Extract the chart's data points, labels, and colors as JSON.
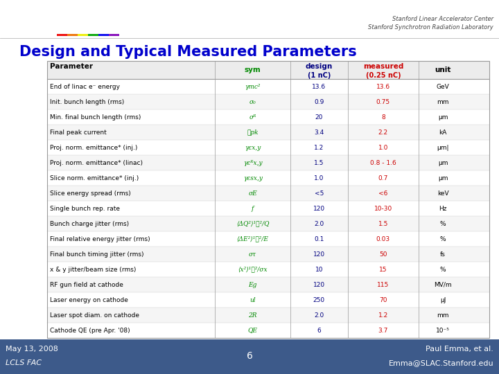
{
  "title": "Design and Typical Measured Parameters",
  "title_color": "#0000CC",
  "bg_color": "#3D5A8A",
  "slide_bg": "#FFFFFF",
  "footer_left1": "May 13, 2008",
  "footer_left2": "LCLS FAC",
  "footer_center": "6",
  "footer_right1": "Paul Emma, et al.",
  "footer_right2": "Emma@SLAC.Stanford.edu",
  "footer_color": "#FFFFFF",
  "stanford_line1": "Stanford Linear Accelerator Center",
  "stanford_line2": "Stanford Synchrotron Radiation Laboratory",
  "header_param": "Parameter",
  "header_sym": "sym",
  "header_design1": "design",
  "header_design2": "(1 nC)",
  "header_measured1": "measured",
  "header_measured2": "(0.25 nC)",
  "header_unit": "unit",
  "rows": [
    [
      "End of linac e⁻ energy",
      "γmc²",
      "13.6",
      "13.6",
      "GeV"
    ],
    [
      "Init. bunch length (rms)",
      "σ₀",
      "0.9",
      "0.75",
      "mm"
    ],
    [
      "Min. final bunch length (rms)",
      "σᴿ",
      "20",
      "8",
      "μm"
    ],
    [
      "Final peak current",
      "ℓpk",
      "3.4",
      "2.2",
      "kA"
    ],
    [
      "Proj. norm. emittance* (inj.)",
      "γεx,y",
      "1.2",
      "1.0",
      "μm|"
    ],
    [
      "Proj. norm. emittance* (linac)",
      "γεᴿx,y",
      "1.5",
      "0.8 - 1.6",
      "μm"
    ],
    [
      "Slice norm. emittance* (inj.)",
      "γεsx,y",
      "1.0",
      "0.7",
      "μm"
    ],
    [
      "Slice energy spread (rms)",
      "σE",
      "<5",
      "<6",
      "keV"
    ],
    [
      "Single bunch rep. rate",
      "f",
      "120",
      "10-30",
      "Hz"
    ],
    [
      "Bunch charge jitter (rms)",
      "⟨ΔQ²⟩¹ᐟ²/Q",
      "2.0",
      "1.5",
      "%"
    ],
    [
      "Final relative energy jitter (rms)",
      "⟨ΔE²⟩¹ᐟ²/E",
      "0.1",
      "0.03",
      "%"
    ],
    [
      "Final bunch timing jitter (rms)",
      "στ",
      "120",
      "50",
      "fs"
    ],
    [
      "x & y jitter/beam size (rms)",
      "⟨x²⟩¹ᐟ²/σx",
      "10",
      "15",
      "%"
    ],
    [
      "RF gun field at cathode",
      "Eg",
      "120",
      "115",
      "MV/m"
    ],
    [
      "Laser energy on cathode",
      "ul",
      "250",
      "70",
      "μJ"
    ],
    [
      "Laser spot diam. on cathode",
      "2R",
      "2.0",
      "1.2",
      "mm"
    ],
    [
      "Cathode QE (pre Apr. '08)",
      "QE",
      "6",
      "3.7",
      "10⁻⁵"
    ]
  ],
  "sym_color": "#008800",
  "design_color": "#000080",
  "measured_color": "#CC0000",
  "logo_colors": [
    "#EE1111",
    "#EE7711",
    "#EEEE11",
    "#11AA11",
    "#1111EE",
    "#8811BB"
  ]
}
